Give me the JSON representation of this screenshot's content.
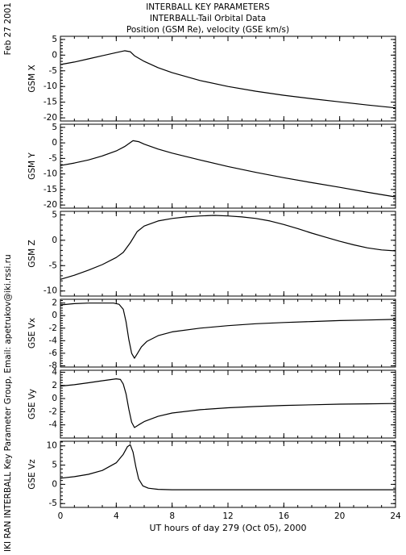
{
  "header": {
    "date": "Feb 27 2001",
    "title_line1": "INTERBALL KEY PARAMETERS",
    "title_line2": "INTERBALL-Tail Orbital Data",
    "title_line3": "Position (GSM Re), velocity (GSE km/s)",
    "credit": "IKI RAN INTERBALL Key Parameter Group, Email: apetrukov@iki.rssi.ru"
  },
  "chart_data": {
    "type": "line",
    "xlabel": "UT hours of day 279 (Oct 05), 2000",
    "xlim": [
      0,
      24
    ],
    "xticks": [
      0,
      4,
      8,
      12,
      16,
      20,
      24
    ],
    "panels": [
      {
        "ylabel": "GSM X",
        "ylim": [
          -21,
          6
        ],
        "yticks": [
          5,
          0,
          -5,
          -10,
          -15,
          -20
        ],
        "x": [
          0,
          1,
          2,
          3,
          4,
          4.6,
          5.0,
          5.3,
          6,
          7,
          8,
          10,
          12,
          14,
          16,
          18,
          20,
          22,
          24
        ],
        "y": [
          -3.0,
          -2.2,
          -1.2,
          -0.2,
          0.8,
          1.4,
          1.1,
          -0.2,
          -2.0,
          -4.0,
          -5.6,
          -8.1,
          -10.0,
          -11.5,
          -12.8,
          -13.9,
          -14.9,
          -15.9,
          -16.8
        ]
      },
      {
        "ylabel": "GSM Y",
        "ylim": [
          -21,
          6
        ],
        "yticks": [
          5,
          0,
          -5,
          -10,
          -15,
          -20
        ],
        "x": [
          0,
          1,
          2,
          3,
          4,
          4.6,
          5.2,
          5.6,
          6,
          7,
          8,
          10,
          12,
          14,
          16,
          18,
          20,
          22,
          24
        ],
        "y": [
          -7.3,
          -6.5,
          -5.5,
          -4.2,
          -2.6,
          -1.2,
          0.7,
          0.4,
          -0.4,
          -2.0,
          -3.3,
          -5.5,
          -7.6,
          -9.5,
          -11.2,
          -12.8,
          -14.3,
          -15.9,
          -17.4
        ]
      },
      {
        "ylabel": "GSM Z",
        "ylim": [
          -11,
          5.7
        ],
        "yticks": [
          5,
          0,
          -5,
          -10
        ],
        "x": [
          0,
          1,
          2,
          3,
          4,
          4.5,
          5.0,
          5.5,
          6,
          7,
          8,
          9,
          10,
          11,
          12,
          13,
          14,
          15,
          16,
          17,
          18,
          19,
          20,
          21,
          22,
          23,
          24
        ],
        "y": [
          -7.7,
          -6.9,
          -5.9,
          -4.8,
          -3.4,
          -2.4,
          -0.5,
          1.7,
          2.8,
          3.8,
          4.3,
          4.6,
          4.8,
          4.9,
          4.8,
          4.6,
          4.3,
          3.8,
          3.1,
          2.3,
          1.4,
          0.6,
          -0.2,
          -0.9,
          -1.5,
          -1.9,
          -2.1
        ]
      },
      {
        "ylabel": "GSE Vx",
        "ylim": [
          -8.2,
          2.6
        ],
        "yticks": [
          2,
          0,
          -2,
          -4,
          -6,
          -8
        ],
        "x": [
          0,
          1,
          2,
          3,
          3.8,
          4.2,
          4.5,
          4.7,
          4.9,
          5.1,
          5.3,
          5.5,
          5.8,
          6.2,
          7,
          8,
          10,
          12,
          14,
          16,
          18,
          20,
          22,
          24
        ],
        "y": [
          1.7,
          1.9,
          2.0,
          2.0,
          2.0,
          1.8,
          1.0,
          -1.0,
          -3.8,
          -6.0,
          -6.8,
          -6.1,
          -5.0,
          -4.1,
          -3.2,
          -2.6,
          -2.0,
          -1.6,
          -1.3,
          -1.1,
          -0.95,
          -0.8,
          -0.7,
          -0.6
        ]
      },
      {
        "ylabel": "GSE Vy",
        "ylim": [
          -6,
          4.3
        ],
        "yticks": [
          4,
          2,
          0,
          -2,
          -4
        ],
        "x": [
          0,
          1,
          2,
          3,
          4,
          4.3,
          4.5,
          4.7,
          4.9,
          5.1,
          5.3,
          5.6,
          6,
          7,
          8,
          10,
          12,
          14,
          16,
          18,
          20,
          22,
          24
        ],
        "y": [
          1.9,
          2.1,
          2.4,
          2.7,
          3.0,
          2.9,
          2.2,
          0.7,
          -1.6,
          -3.6,
          -4.4,
          -4.0,
          -3.5,
          -2.7,
          -2.2,
          -1.7,
          -1.4,
          -1.2,
          -1.05,
          -0.95,
          -0.85,
          -0.8,
          -0.75
        ]
      },
      {
        "ylabel": "GSE Vz",
        "ylim": [
          -6,
          11.2
        ],
        "yticks": [
          10,
          5,
          0,
          -5
        ],
        "x": [
          0,
          1,
          2,
          3,
          4,
          4.5,
          4.8,
          5.0,
          5.2,
          5.4,
          5.6,
          5.9,
          6.3,
          7,
          8,
          10,
          12,
          16,
          20,
          24
        ],
        "y": [
          1.6,
          2.0,
          2.6,
          3.6,
          5.6,
          7.8,
          9.8,
          10.3,
          8.4,
          4.6,
          1.4,
          -0.4,
          -1.0,
          -1.3,
          -1.4,
          -1.4,
          -1.4,
          -1.4,
          -1.4,
          -1.4
        ]
      }
    ]
  }
}
